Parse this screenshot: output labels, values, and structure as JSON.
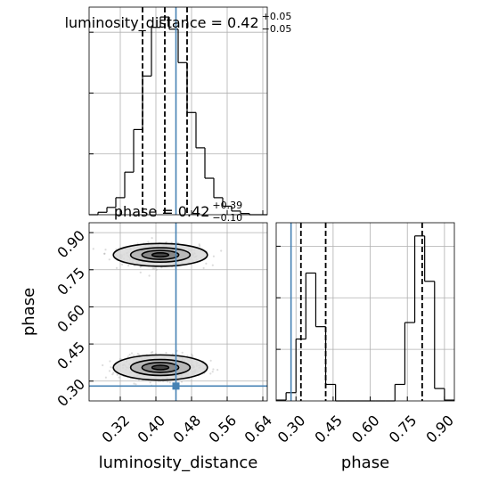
{
  "chart_data": {
    "type": "corner",
    "parameters": [
      "luminosity_distance",
      "phase"
    ],
    "truth": {
      "luminosity_distance": 0.445,
      "phase": 0.28
    },
    "titles": {
      "luminosity_distance": {
        "prefix": "luminosity_distance = 0.42",
        "sup": "+0.05",
        "sub": "−0.05"
      },
      "phase": {
        "prefix": "phase = 0.42",
        "sup": "+0.39",
        "sub": "−0.10"
      }
    },
    "luminosity_distance": {
      "ticks": [
        "0.32",
        "0.40",
        "0.48",
        "0.56",
        "0.64"
      ],
      "tick_values": [
        0.32,
        0.4,
        0.48,
        0.56,
        0.64
      ],
      "range": [
        0.25,
        0.65
      ],
      "quantiles": [
        0.37,
        0.42,
        0.47
      ],
      "hist_edges": [
        0.25,
        0.27,
        0.29,
        0.31,
        0.33,
        0.35,
        0.37,
        0.39,
        0.41,
        0.43,
        0.45,
        0.47,
        0.49,
        0.51,
        0.53,
        0.55,
        0.57,
        0.59,
        0.61,
        0.63,
        0.65
      ],
      "hist_counts": [
        0,
        4,
        12,
        28,
        70,
        140,
        228,
        308,
        325,
        305,
        250,
        168,
        110,
        60,
        28,
        14,
        6,
        2,
        0,
        0
      ]
    },
    "phase": {
      "ticks": [
        "0.30",
        "0.45",
        "0.60",
        "0.75",
        "0.90"
      ],
      "tick_values": [
        0.3,
        0.45,
        0.6,
        0.75,
        0.9
      ],
      "range": [
        0.22,
        0.94
      ],
      "quantiles": [
        0.32,
        0.42,
        0.81
      ],
      "hist_edges": [
        0.22,
        0.26,
        0.3,
        0.34,
        0.38,
        0.42,
        0.46,
        0.5,
        0.54,
        0.58,
        0.62,
        0.66,
        0.7,
        0.74,
        0.78,
        0.82,
        0.86,
        0.9,
        0.94
      ],
      "hist_counts": [
        4,
        40,
        300,
        620,
        360,
        80,
        0,
        0,
        0,
        0,
        0,
        0,
        80,
        380,
        800,
        580,
        60,
        4
      ]
    },
    "modes": [
      {
        "center": [
          0.41,
          0.81
        ],
        "spread": [
          0.048,
          0.038
        ],
        "weight": 0.5
      },
      {
        "center": [
          0.41,
          0.355
        ],
        "spread": [
          0.048,
          0.042
        ],
        "weight": 0.5
      }
    ],
    "contour_levels": [
      0.39,
      0.86,
      1.39,
      2.2
    ],
    "colors": {
      "truth": "#4682b4",
      "line": "#000000",
      "grid": "#b0b0b0",
      "scatter": "#9a9a9a"
    }
  }
}
